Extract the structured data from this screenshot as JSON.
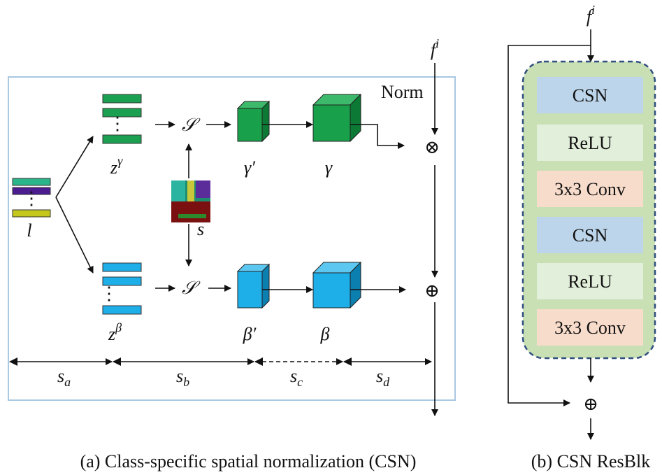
{
  "panel_a": {
    "caption": "(a) Class-specific spatial normalization (CSN)",
    "input_feature": {
      "base": "f",
      "sup": "i"
    },
    "norm_label": "Norm",
    "label_map": "l",
    "z_gamma": {
      "base": "z",
      "sup": "γ"
    },
    "z_beta": {
      "base": "z",
      "sup": "β"
    },
    "spatial_op_top": "𝒮",
    "spatial_op_bottom": "𝒮",
    "segmentation": "s",
    "gamma_prime": "γ′",
    "gamma": "γ",
    "beta_prime": "β′",
    "beta": "β",
    "multiply": "⊗",
    "add": "⊕",
    "spans": [
      {
        "base": "s",
        "sub": "a"
      },
      {
        "base": "s",
        "sub": "b"
      },
      {
        "base": "s",
        "sub": "c"
      },
      {
        "base": "s",
        "sub": "d"
      }
    ]
  },
  "panel_b": {
    "caption": "(b) CSN ResBlk",
    "input_feature": {
      "base": "f",
      "sup": "i"
    },
    "blocks": [
      "CSN",
      "ReLU",
      "3x3 Conv",
      "CSN",
      "ReLU",
      "3x3 Conv"
    ],
    "add": "⊕"
  }
}
